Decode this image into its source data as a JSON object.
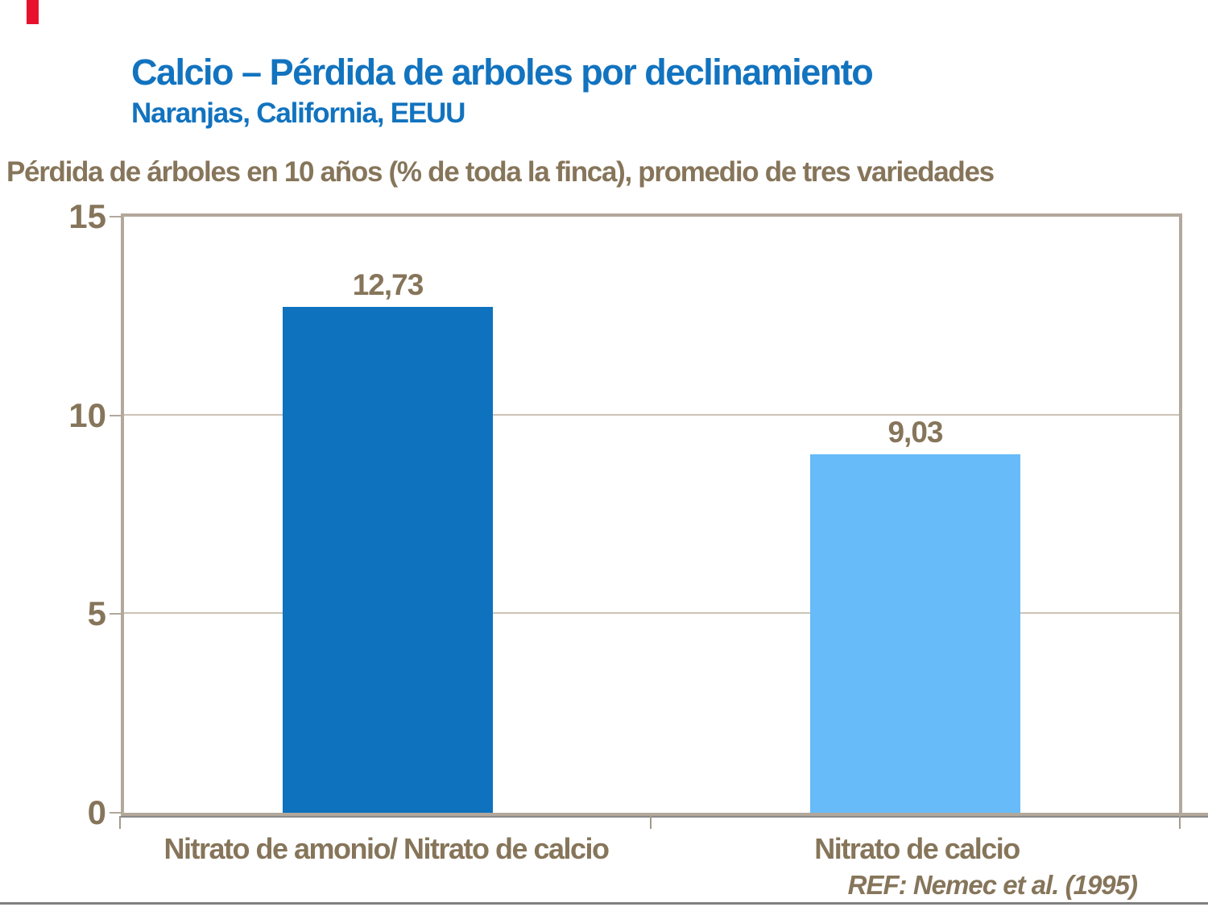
{
  "slide": {
    "title": "Calcio – Pérdida de arboles por declinamiento",
    "subtitle": "Naranjas, California, EEUU",
    "axis_note": "Pérdida de árboles en 10 años (% de toda la finca), promedio de tres variedades",
    "reference": "REF: Nemec et al. (1995)"
  },
  "colors": {
    "title_blue": "#1273bf",
    "text_brown": "#86755a",
    "accent_red": "#e8112d",
    "frame_tan": "#b2a89b",
    "gridline_tan": "#ccc3b6",
    "tick_gray": "#a39a8d",
    "shadow_gray": "#8a8a8a",
    "bottom_rule_gray": "#808080",
    "bar_dark_blue": "#0e72be",
    "bar_light_blue": "#66bbf8"
  },
  "chart_data": {
    "type": "bar",
    "title": "Calcio – Pérdida de arboles por declinamiento",
    "subtitle": "Naranjas, California, EEUU",
    "ylabel": "Pérdida de árboles en 10 años (% de toda la finca), promedio de tres variedades",
    "categories": [
      "Nitrato de amonio/ Nitrato de calcio",
      "Nitrato de calcio"
    ],
    "values": [
      12.73,
      9.03
    ],
    "value_labels": [
      "12,73",
      "9,03"
    ],
    "bar_colors": [
      "#0e72be",
      "#66bbf8"
    ],
    "ylim": [
      0,
      15
    ],
    "yticks": [
      0,
      5,
      10,
      15
    ],
    "grid": true,
    "legend": false,
    "annotation": "REF: Nemec et al. (1995)"
  }
}
